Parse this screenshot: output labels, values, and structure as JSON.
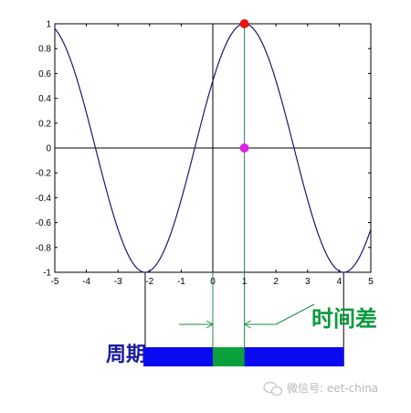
{
  "chart_data": {
    "type": "line",
    "title": "",
    "xlabel": "",
    "ylabel": "",
    "xlim": [
      -5,
      5
    ],
    "ylim": [
      -1,
      1
    ],
    "grid": false,
    "x_ticks": [
      -5,
      -4,
      -3,
      -2,
      -1,
      0,
      1,
      2,
      3,
      4,
      5
    ],
    "y_ticks": [
      1,
      0.8,
      0.6,
      0.4,
      0.2,
      0,
      -0.2,
      -0.4,
      -0.6,
      -0.8,
      -1
    ],
    "x_tick_labels": [
      "-5",
      "-4",
      "-3",
      "-2",
      "-1",
      "0",
      "1",
      "2",
      "3",
      "4",
      "5"
    ],
    "y_tick_labels": [
      "1",
      "0.8",
      "0.6",
      "0.4",
      "0.2",
      "0",
      "-0.2",
      "-0.4",
      "-0.6",
      "-0.8",
      "-1"
    ],
    "series": [
      {
        "function": "cos(x - 1)",
        "x_range": [
          -5,
          5
        ],
        "color": "#1a1a6e"
      }
    ],
    "markers": [
      {
        "x": 1,
        "y": 1,
        "color": "#e8130f"
      },
      {
        "x": 1,
        "y": 0,
        "color": "#e11ee1"
      }
    ],
    "guide_lines": {
      "vertical_at_x": [
        -2.14,
        0,
        1,
        4.14
      ],
      "horizontal_at_y": [
        0
      ]
    },
    "period_bar": {
      "start_x": -2.14,
      "end_x": 4.14,
      "color": "#0a0af0"
    },
    "shift_segment": {
      "start_x": 0,
      "end_x": 1,
      "color": "#0aa03c"
    },
    "annotations": {
      "period_label": "周期",
      "time_difference_label": "时间差",
      "period_label_color": "#1a1a9a",
      "time_difference_color": "#0a9a3c"
    }
  },
  "watermark": {
    "text": "微信号: eet-china"
  }
}
